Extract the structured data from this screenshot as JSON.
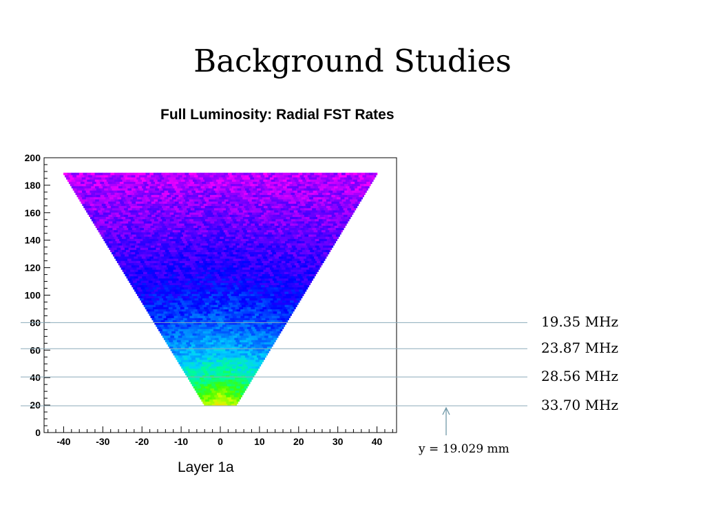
{
  "slide_title": "Background Studies",
  "chart_data": {
    "type": "heatmap",
    "title": "Full Luminosity: Radial FST Rates",
    "xlabel": "Layer 1a",
    "ylabel": "",
    "xlim": [
      -45,
      45
    ],
    "ylim": [
      0,
      200
    ],
    "x_ticks": [
      -40,
      -30,
      -20,
      -10,
      0,
      10,
      20,
      30,
      40
    ],
    "y_ticks": [
      0,
      20,
      40,
      60,
      80,
      100,
      120,
      140,
      160,
      180,
      200
    ],
    "region": {
      "shape": "inverted-trapezoid",
      "y_min": 19.5,
      "y_max": 188,
      "x_half_width_at_y_min": 4,
      "x_half_width_at_y_max": 40
    },
    "colormap": [
      "#ff00ff",
      "#6a00ff",
      "#0000ff",
      "#0070ff",
      "#00d0ff",
      "#00ff90",
      "#40ff00",
      "#c8ff00",
      "#ffd800"
    ],
    "intensity_profile": [
      {
        "y": 188,
        "level": 0.06
      },
      {
        "y": 150,
        "level": 0.14
      },
      {
        "y": 110,
        "level": 0.24
      },
      {
        "y": 80,
        "level": 0.36
      },
      {
        "y": 60,
        "level": 0.48
      },
      {
        "y": 40,
        "level": 0.66
      },
      {
        "y": 25,
        "level": 0.86
      },
      {
        "y": 19.5,
        "level": 0.95
      }
    ],
    "reference_lines": [
      {
        "y": 80,
        "label": "19.35 MHz"
      },
      {
        "y": 61,
        "label": "23.87 MHz"
      },
      {
        "y": 40.5,
        "label": "28.56 MHz"
      },
      {
        "y": 19.5,
        "label": "33.70 MHz"
      }
    ],
    "annotation": {
      "text": "y = 19.029 mm",
      "points_to_y": 19.029
    }
  }
}
